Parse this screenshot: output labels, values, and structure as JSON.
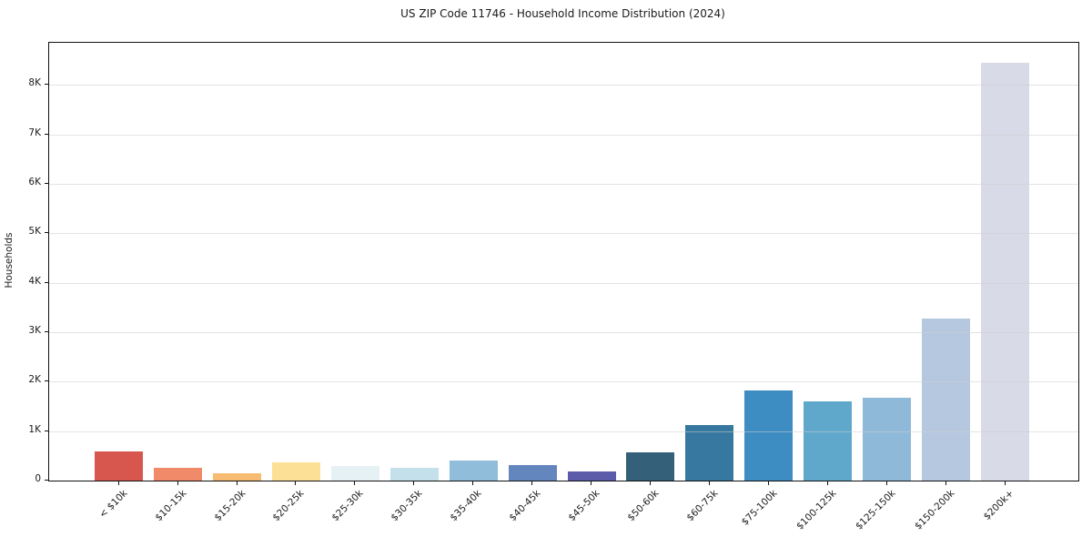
{
  "chart_data": {
    "type": "bar",
    "title": "US ZIP Code 11746 - Household Income Distribution (2024)",
    "xlabel": "",
    "ylabel": "Households",
    "categories": [
      "< $10k",
      "$10-15k",
      "$15-20k",
      "$20-25k",
      "$25-30k",
      "$30-35k",
      "$35-40k",
      "$40-45k",
      "$45-50k",
      "$50-60k",
      "$60-75k",
      "$75-100k",
      "$100-125k",
      "$125-150k",
      "$150-200k",
      "$200k+"
    ],
    "values": [
      590,
      260,
      140,
      360,
      295,
      255,
      405,
      315,
      185,
      580,
      1120,
      1815,
      1600,
      1670,
      3270,
      8450
    ],
    "bar_colors": [
      "#d7574f",
      "#f08a68",
      "#f7bb72",
      "#fce096",
      "#e6f1f5",
      "#c3e0eb",
      "#90bdda",
      "#6486be",
      "#5c5baa",
      "#35607a",
      "#36789f",
      "#3d8cc2",
      "#60a7cc",
      "#8fb9d8",
      "#b5c8e0",
      "#d9dae8"
    ],
    "ylim": [
      0,
      8850
    ],
    "ytick_values": [
      0,
      1000,
      2000,
      3000,
      4000,
      5000,
      6000,
      7000,
      8000
    ],
    "ytick_labels": [
      "0",
      "1K",
      "2K",
      "3K",
      "4K",
      "5K",
      "6K",
      "7K",
      "8K"
    ],
    "grid": "horizontal",
    "legend": "none",
    "background_color": "#ffffff",
    "text_color": "#1a1a1a"
  }
}
